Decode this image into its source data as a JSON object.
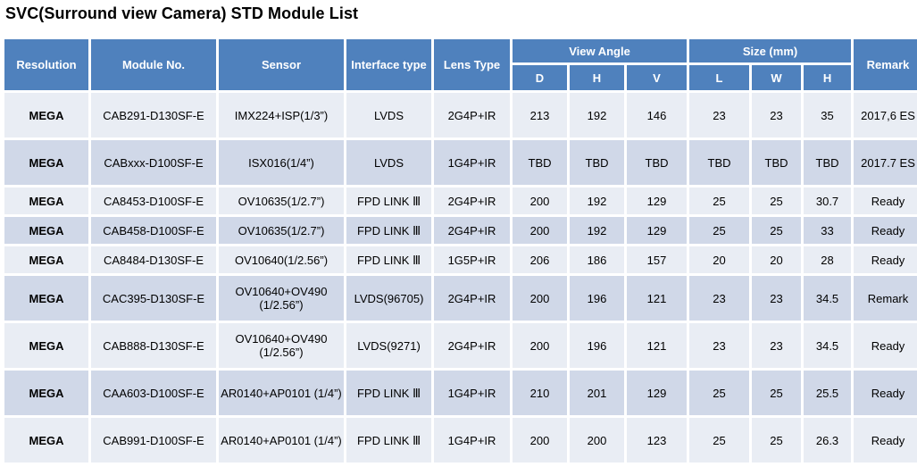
{
  "title": "SVC(Surround view Camera) STD Module List",
  "headers": {
    "resolution": "Resolution",
    "module_no": "Module No.",
    "sensor": "Sensor",
    "interface_type": "Interface type",
    "lens_type": "Lens Type",
    "view_angle": "View Angle",
    "size": "Size (mm)",
    "remark": "Remark",
    "view_angle_sub": [
      "D",
      "H",
      "V"
    ],
    "size_sub": [
      "L",
      "W",
      "H"
    ]
  },
  "colors": {
    "header_bg": "#4f81bd",
    "row_light": "#e9edf4",
    "row_dark": "#d0d8e8"
  },
  "rows": [
    {
      "resolution": "MEGA",
      "module_no": "CAB291-D130SF-E",
      "sensor": "IMX224+ISP(1/3”)",
      "interface": "LVDS",
      "lens": "2G4P+IR",
      "d": "213",
      "h": "192",
      "v": "146",
      "l": "23",
      "w": "23",
      "sh": "35",
      "remark": "2017,6 ES"
    },
    {
      "resolution": "MEGA",
      "module_no": "CABxxx-D100SF-E",
      "sensor": "ISX016(1/4”)",
      "interface": "LVDS",
      "lens": "1G4P+IR",
      "d": "TBD",
      "h": "TBD",
      "v": "TBD",
      "l": "TBD",
      "w": "TBD",
      "sh": "TBD",
      "remark": "2017.7 ES"
    },
    {
      "resolution": "MEGA",
      "module_no": "CA8453-D100SF-E",
      "sensor": "OV10635(1/2.7”)",
      "interface": "FPD LINK Ⅲ",
      "lens": "2G4P+IR",
      "d": "200",
      "h": "192",
      "v": "129",
      "l": "25",
      "w": "25",
      "sh": "30.7",
      "remark": "Ready"
    },
    {
      "resolution": "MEGA",
      "module_no": "CAB458-D100SF-E",
      "sensor": "OV10635(1/2.7”)",
      "interface": "FPD LINK Ⅲ",
      "lens": "2G4P+IR",
      "d": "200",
      "h": "192",
      "v": "129",
      "l": "25",
      "w": "25",
      "sh": "33",
      "remark": "Ready"
    },
    {
      "resolution": "MEGA",
      "module_no": "CA8484-D130SF-E",
      "sensor": "OV10640(1/2.56”)",
      "interface": "FPD LINK Ⅲ",
      "lens": "1G5P+IR",
      "d": "206",
      "h": "186",
      "v": "157",
      "l": "20",
      "w": "20",
      "sh": "28",
      "remark": "Ready"
    },
    {
      "resolution": "MEGA",
      "module_no": "CAC395-D130SF-E",
      "sensor": "OV10640+OV490 (1/2.56”)",
      "interface": "LVDS(96705)",
      "lens": "2G4P+IR",
      "d": "200",
      "h": "196",
      "v": "121",
      "l": "23",
      "w": "23",
      "sh": "34.5",
      "remark": "Remark"
    },
    {
      "resolution": "MEGA",
      "module_no": "CAB888-D130SF-E",
      "sensor": "OV10640+OV490 (1/2.56”)",
      "interface": "LVDS(9271)",
      "lens": "2G4P+IR",
      "d": "200",
      "h": "196",
      "v": "121",
      "l": "23",
      "w": "23",
      "sh": "34.5",
      "remark": "Ready"
    },
    {
      "resolution": "MEGA",
      "module_no": "CAA603-D100SF-E",
      "sensor": "AR0140+AP0101 (1/4”)",
      "interface": "FPD LINK Ⅲ",
      "lens": "1G4P+IR",
      "d": "210",
      "h": "201",
      "v": "129",
      "l": "25",
      "w": "25",
      "sh": "25.5",
      "remark": "Ready"
    },
    {
      "resolution": "MEGA",
      "module_no": "CAB991-D100SF-E",
      "sensor": "AR0140+AP0101 (1/4”)",
      "interface": "FPD LINK Ⅲ",
      "lens": "1G4P+IR",
      "d": "200",
      "h": "200",
      "v": "123",
      "l": "25",
      "w": "25",
      "sh": "26.3",
      "remark": "Ready"
    }
  ]
}
